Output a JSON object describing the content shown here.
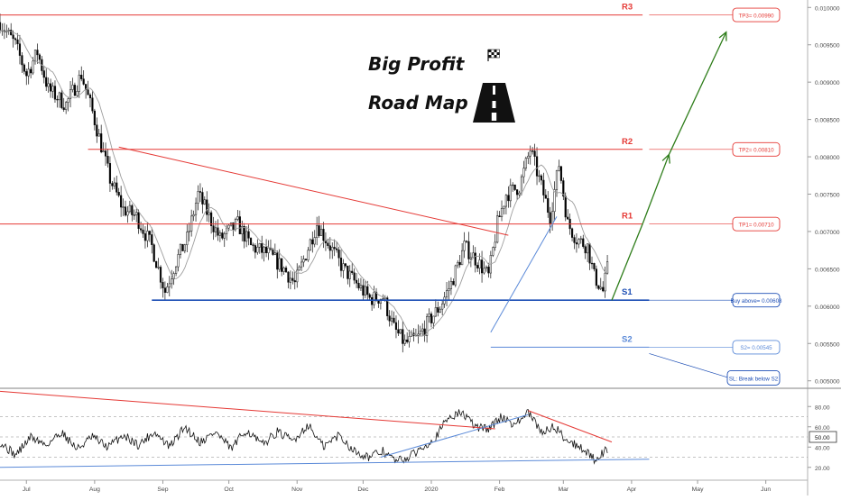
{
  "chart_data": {
    "type": "candlestick",
    "title_line1": "Big Profit",
    "title_line2": "Road Map",
    "colors": {
      "up_candle": "#ffffff",
      "down_candle": "#000000",
      "resistance": "#e53935",
      "support": "#1e4fb5",
      "light_blue": "#5b8ad8",
      "arrow": "#2e7d1a",
      "ma": "#9e9e9e",
      "axis_text": "#4a4a4a",
      "grid": "#b0b0b0"
    },
    "y_axis": {
      "min": 0.0049,
      "max": 0.0101,
      "ticks": [
        0.01,
        0.0095,
        0.009,
        0.0085,
        0.008,
        0.0075,
        0.007,
        0.0065,
        0.006,
        0.0055,
        0.005
      ],
      "tick_labels": [
        "0.010000",
        "0.009500",
        "0.009000",
        "0.008500",
        "0.008000",
        "0.007500",
        "0.007000",
        "0.006500",
        "0.006000",
        "0.005500",
        "0.005000"
      ]
    },
    "x_axis": {
      "labels": [
        "Jul",
        "Aug",
        "Sep",
        "Oct",
        "Nov",
        "Dec",
        "2020",
        "Feb",
        "Mar",
        "Apr",
        "May",
        "Jun"
      ],
      "label_days": [
        0,
        31,
        62,
        92,
        123,
        153,
        184,
        215,
        244,
        275,
        305,
        336
      ],
      "day_range": [
        -12,
        355
      ]
    },
    "levels": [
      {
        "name": "R3",
        "value": 0.0099,
        "tag": "TP3= 0.00990",
        "color": "resistance"
      },
      {
        "name": "R2",
        "value": 0.0081,
        "tag": "TP2= 0.00810",
        "color": "resistance"
      },
      {
        "name": "R1",
        "value": 0.0071,
        "tag": "TP1= 0.00710",
        "color": "resistance"
      },
      {
        "name": "S1",
        "value": 0.00608,
        "tag": "Buy above= 0.00608",
        "color": "support"
      },
      {
        "name": "S2",
        "value": 0.00545,
        "tag": "S2= 0.00545",
        "color": "light_blue"
      }
    ],
    "sl_note": "SL: Break below S2",
    "trendlines": [
      {
        "color": "resistance",
        "from": [
          42,
          0.00813
        ],
        "to": [
          219,
          0.00695
        ]
      },
      {
        "color": "light_blue",
        "from": [
          211,
          0.00565
        ],
        "to": [
          241,
          0.0072
        ]
      }
    ],
    "projection_path": [
      [
        266,
        0.00608
      ],
      [
        280,
        0.0071
      ],
      [
        292,
        0.00803
      ],
      [
        318,
        0.00967
      ]
    ],
    "price_anchors": [
      [
        -12,
        0.0098
      ],
      [
        -5,
        0.0095
      ],
      [
        0,
        0.0091
      ],
      [
        5,
        0.0094
      ],
      [
        10,
        0.0089
      ],
      [
        18,
        0.0087
      ],
      [
        25,
        0.0091
      ],
      [
        30,
        0.0086
      ],
      [
        38,
        0.0077
      ],
      [
        44,
        0.0073
      ],
      [
        50,
        0.0072
      ],
      [
        57,
        0.0068
      ],
      [
        63,
        0.0062
      ],
      [
        68,
        0.0066
      ],
      [
        73,
        0.0069
      ],
      [
        78,
        0.0075
      ],
      [
        83,
        0.0072
      ],
      [
        88,
        0.0069
      ],
      [
        96,
        0.0071
      ],
      [
        102,
        0.0068
      ],
      [
        110,
        0.0067
      ],
      [
        117,
        0.0065
      ],
      [
        122,
        0.0063
      ],
      [
        127,
        0.0067
      ],
      [
        132,
        0.0071
      ],
      [
        138,
        0.0068
      ],
      [
        144,
        0.0065
      ],
      [
        150,
        0.0063
      ],
      [
        156,
        0.0061
      ],
      [
        162,
        0.00612
      ],
      [
        167,
        0.0057
      ],
      [
        172,
        0.0055
      ],
      [
        178,
        0.00558
      ],
      [
        183,
        0.0058
      ],
      [
        188,
        0.006
      ],
      [
        193,
        0.0063
      ],
      [
        199,
        0.0068
      ],
      [
        205,
        0.0066
      ],
      [
        210,
        0.0064
      ],
      [
        214,
        0.0071
      ],
      [
        218,
        0.0075
      ],
      [
        224,
        0.0076
      ],
      [
        229,
        0.0081
      ],
      [
        234,
        0.0076
      ],
      [
        238,
        0.0072
      ],
      [
        242,
        0.0079
      ],
      [
        246,
        0.0071
      ],
      [
        250,
        0.0069
      ],
      [
        255,
        0.0068
      ],
      [
        258,
        0.0064
      ],
      [
        262,
        0.0062
      ],
      [
        264,
        0.0065
      ]
    ],
    "oscillator": {
      "ticks": [
        80,
        60,
        40,
        20
      ],
      "tick_labels": [
        "80.00",
        "60.00",
        "40.00",
        "20.00"
      ],
      "current": 50.0,
      "current_label": "50.00",
      "range": [
        10,
        90
      ],
      "dashed_levels": [
        70,
        50,
        30
      ],
      "anchors": [
        [
          -12,
          45
        ],
        [
          -5,
          32
        ],
        [
          2,
          50
        ],
        [
          9,
          42
        ],
        [
          16,
          55
        ],
        [
          23,
          38
        ],
        [
          30,
          50
        ],
        [
          37,
          40
        ],
        [
          44,
          52
        ],
        [
          51,
          42
        ],
        [
          58,
          55
        ],
        [
          65,
          40
        ],
        [
          72,
          60
        ],
        [
          79,
          45
        ],
        [
          86,
          55
        ],
        [
          93,
          38
        ],
        [
          100,
          57
        ],
        [
          107,
          42
        ],
        [
          114,
          55
        ],
        [
          121,
          46
        ],
        [
          128,
          62
        ],
        [
          135,
          40
        ],
        [
          142,
          52
        ],
        [
          149,
          36
        ],
        [
          156,
          30
        ],
        [
          162,
          36
        ],
        [
          168,
          26
        ],
        [
          174,
          30
        ],
        [
          180,
          40
        ],
        [
          186,
          50
        ],
        [
          192,
          70
        ],
        [
          198,
          74
        ],
        [
          204,
          60
        ],
        [
          210,
          58
        ],
        [
          216,
          70
        ],
        [
          222,
          62
        ],
        [
          228,
          74
        ],
        [
          234,
          55
        ],
        [
          240,
          60
        ],
        [
          246,
          46
        ],
        [
          252,
          40
        ],
        [
          258,
          28
        ],
        [
          264,
          38
        ]
      ],
      "trendlines": [
        {
          "color": "resistance",
          "from": [
            -12,
            95
          ],
          "to": [
            213,
            58
          ]
        },
        {
          "color": "resistance",
          "from": [
            228,
            76
          ],
          "to": [
            266,
            45
          ]
        },
        {
          "color": "light_blue",
          "from": [
            161,
            30
          ],
          "to": [
            228,
            72
          ]
        },
        {
          "color": "light_blue",
          "from": [
            -12,
            20
          ],
          "to": [
            283,
            28
          ]
        }
      ]
    }
  }
}
